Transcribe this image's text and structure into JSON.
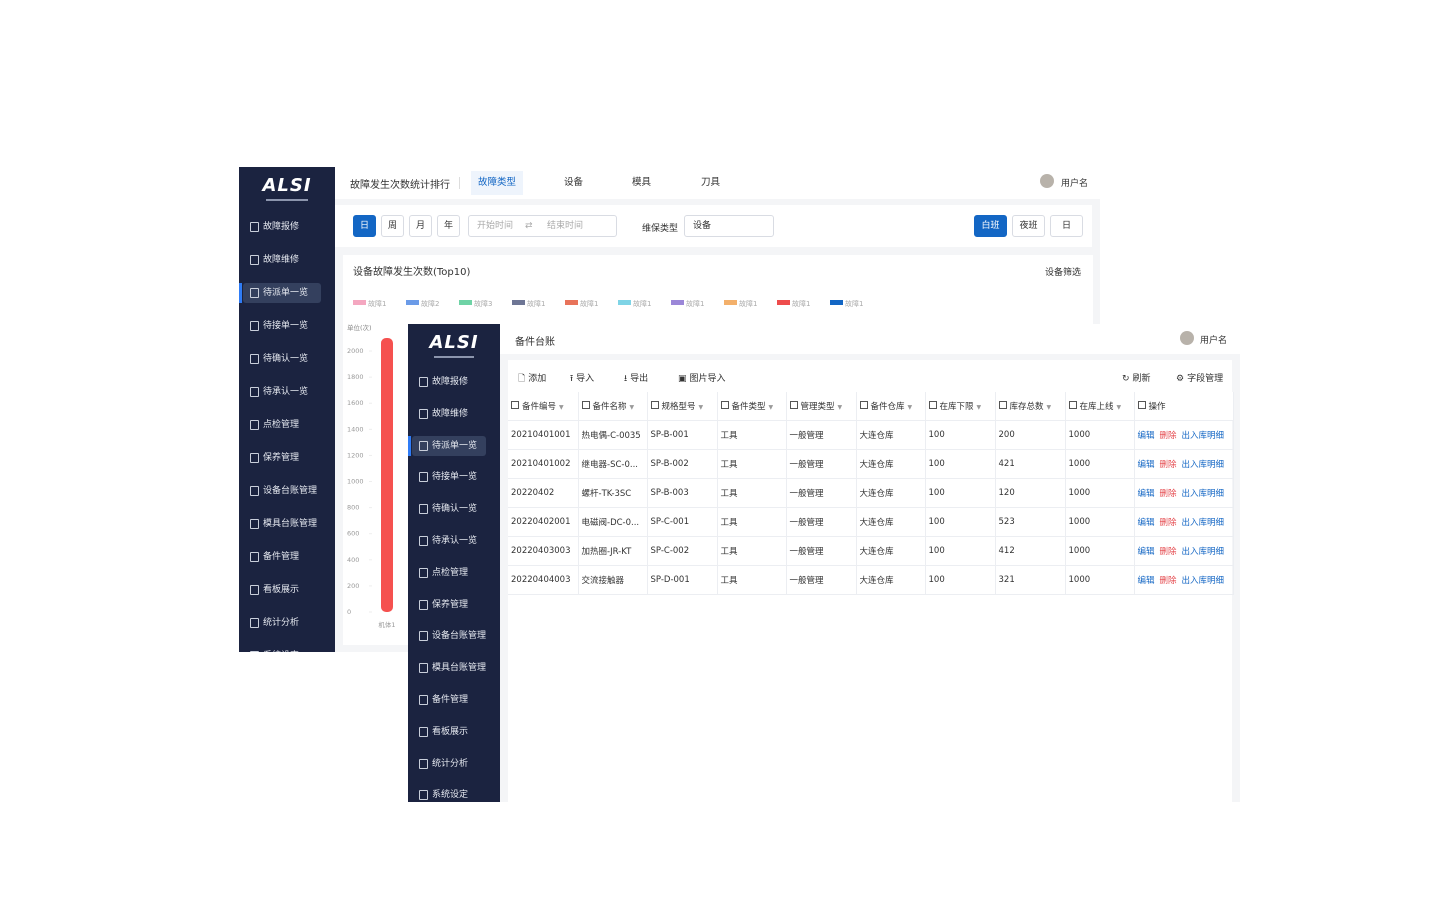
{
  "logo": "ALSI",
  "sidebar": {
    "menu": [
      "故障报修",
      "故障维修",
      "待派单一览",
      "待接单一览",
      "待确认一览",
      "待承认一览",
      "点检管理",
      "保养管理",
      "设备台账管理",
      "模具台账管理",
      "备件管理",
      "看板展示",
      "统计分析",
      "系统设定"
    ],
    "active": 2
  },
  "back": {
    "header": {
      "title": "故障发生次数统计排行",
      "tabs": [
        "故障类型",
        "设备",
        "模具",
        "刀具"
      ],
      "active_tab": 0,
      "user": "用户名"
    },
    "filters": {
      "periods": [
        "日",
        "周",
        "月",
        "年"
      ],
      "start": "开始时间",
      "end": "结束时间",
      "type_label": "维保类型",
      "type_value": "设备",
      "shifts": [
        "白班",
        "夜班",
        "日"
      ]
    },
    "chart": {
      "type": "bar",
      "title": "设备故障发生次数(Top10)",
      "filter": "设备筛选",
      "y_unit": "单位(次)",
      "legend": [
        {
          "name": "故障1",
          "color": "#f4a7c0"
        },
        {
          "name": "故障2",
          "color": "#6b9be8"
        },
        {
          "name": "故障3",
          "color": "#6fd3a6"
        },
        {
          "name": "故障1",
          "color": "#6e7695"
        },
        {
          "name": "故障1",
          "color": "#e8735a"
        },
        {
          "name": "故障1",
          "color": "#7fd4e6"
        },
        {
          "name": "故障1",
          "color": "#9b87d8"
        },
        {
          "name": "故障1",
          "color": "#f3b06b"
        },
        {
          "name": "故障1",
          "color": "#ee4c4c"
        },
        {
          "name": "故障1",
          "color": "#1366c4"
        }
      ],
      "categories": [
        "机体1"
      ],
      "values": [
        2100
      ],
      "color": "#f5514f",
      "ylim": [
        0,
        2100
      ],
      "yticks": [
        0,
        200,
        400,
        600,
        800,
        1000,
        1200,
        1400,
        1600,
        1800,
        2000
      ]
    }
  },
  "front": {
    "header": {
      "title": "备件台账",
      "user": "用户名"
    },
    "toolbar": {
      "left": [
        "添加",
        "导入",
        "导出",
        "图片导入"
      ],
      "right": [
        "刷新",
        "字段管理"
      ]
    },
    "table": {
      "columns": [
        "备件编号",
        "备件名称",
        "规格型号",
        "备件类型",
        "管理类型",
        "备件仓库",
        "在库下限",
        "库存总数",
        "在库上线",
        "操作"
      ],
      "rows": [
        [
          "20210401001",
          "热电偶-C-0035",
          "SP-B-001",
          "工具",
          "一般管理",
          "大连仓库",
          100,
          200,
          1000
        ],
        [
          "20210401002",
          "继电器-SC-0...",
          "SP-B-002",
          "工具",
          "一般管理",
          "大连仓库",
          100,
          421,
          1000
        ],
        [
          "20220402",
          "螺杆-TK-3SC",
          "SP-B-003",
          "工具",
          "一般管理",
          "大连仓库",
          100,
          120,
          1000
        ],
        [
          "20220402001",
          "电磁阀-DC-0...",
          "SP-C-001",
          "工具",
          "一般管理",
          "大连仓库",
          100,
          523,
          1000
        ],
        [
          "20220403003",
          "加热圈-JR-KT",
          "SP-C-002",
          "工具",
          "一般管理",
          "大连仓库",
          100,
          412,
          1000
        ],
        [
          "20220404003",
          "交流接触器",
          "SP-D-001",
          "工具",
          "一般管理",
          "大连仓库",
          100,
          321,
          1000
        ]
      ],
      "actions": [
        "编辑",
        "删除",
        "出入库明细"
      ]
    }
  }
}
